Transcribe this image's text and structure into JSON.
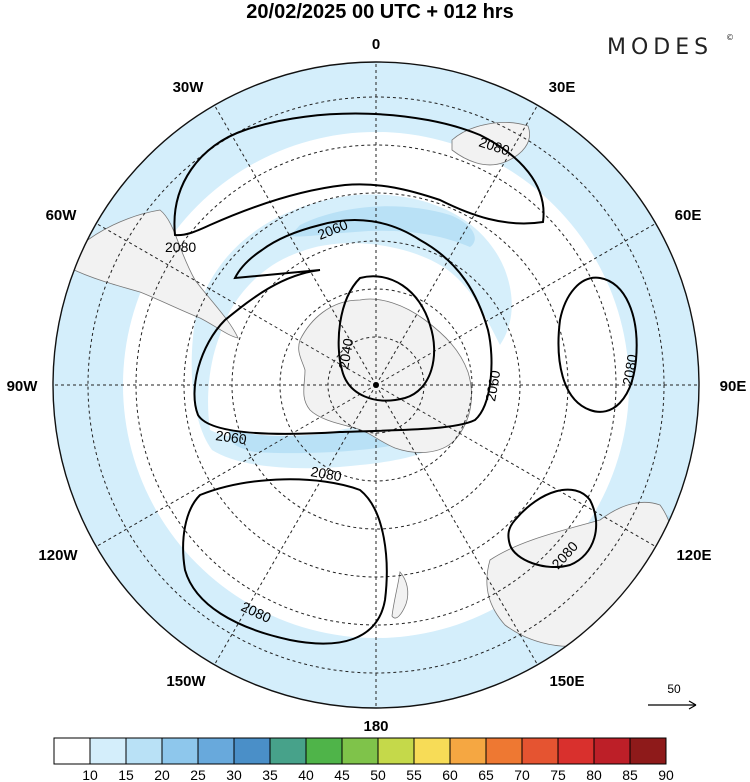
{
  "header": {
    "title": "20/02/2025  00 UTC  + 012 hrs",
    "brand": "MODES",
    "brand_mark": "©"
  },
  "map": {
    "projection": "south-polar-stereographic",
    "background_color": "#ffffff",
    "land_color": "#f2f2f2",
    "jet_colors": [
      "#d4eefb",
      "#b9e1f6"
    ],
    "longitude_labels": [
      "0",
      "30E",
      "60E",
      "90E",
      "120E",
      "150E",
      "180",
      "150W",
      "120W",
      "90W",
      "60W",
      "30W"
    ],
    "contour_labels": [
      "2080",
      "2080",
      "2060",
      "2040",
      "2060",
      "2080",
      "2060",
      "2080",
      "2080",
      "2080"
    ]
  },
  "vector_legend": {
    "label": "50"
  },
  "colorbar": {
    "labels": [
      "10",
      "15",
      "20",
      "25",
      "30",
      "35",
      "40",
      "45",
      "50",
      "55",
      "60",
      "65",
      "70",
      "75",
      "80",
      "85",
      "90"
    ],
    "colors": [
      "#ffffff",
      "#d4eefb",
      "#b9e1f6",
      "#8ec7ec",
      "#68a9dc",
      "#4a8fc8",
      "#47a28a",
      "#4fb449",
      "#7fc34a",
      "#c5d94a",
      "#f7dc57",
      "#f5a742",
      "#ee7832",
      "#e55431",
      "#d9302d",
      "#bd1f28",
      "#8e1a1a"
    ]
  }
}
